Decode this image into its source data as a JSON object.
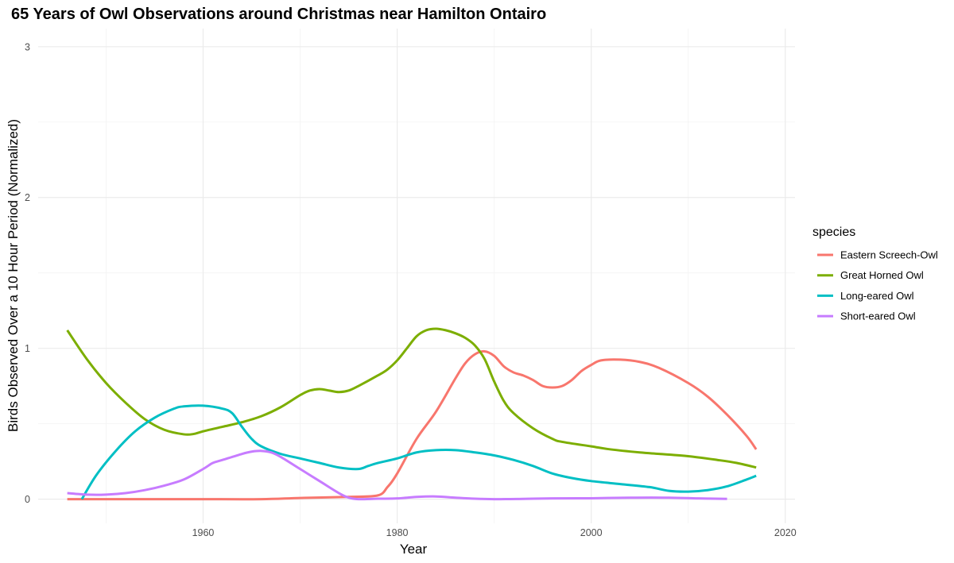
{
  "chart_data": {
    "type": "line",
    "title": "65 Years of Owl Observations around Christmas near Hamilton Ontairo",
    "xlabel": "Year",
    "ylabel": "Birds Observed Over a 10 Hour Period (Normalized)",
    "xlim": [
      1943,
      2021
    ],
    "ylim": [
      -0.16,
      3.12
    ],
    "xticks": [
      1960,
      1980,
      2000,
      2020
    ],
    "yticks": [
      0,
      1,
      2,
      3
    ],
    "grid": true,
    "legend": {
      "title": "species",
      "position": "right"
    },
    "series": [
      {
        "name": "Eastern Screech-Owl",
        "color": "#F8766D",
        "points": [
          [
            1946,
            0.0
          ],
          [
            1950,
            0.0
          ],
          [
            1955,
            0.0
          ],
          [
            1960,
            0.0
          ],
          [
            1966,
            0.0
          ],
          [
            1970,
            0.008
          ],
          [
            1975,
            0.015
          ],
          [
            1978,
            0.025
          ],
          [
            1979,
            0.08
          ],
          [
            1980,
            0.17
          ],
          [
            1982,
            0.4
          ],
          [
            1984,
            0.58
          ],
          [
            1986,
            0.8
          ],
          [
            1987,
            0.9
          ],
          [
            1988,
            0.96
          ],
          [
            1989,
            0.98
          ],
          [
            1990,
            0.95
          ],
          [
            1991,
            0.88
          ],
          [
            1992,
            0.84
          ],
          [
            1993,
            0.82
          ],
          [
            1994,
            0.79
          ],
          [
            1995,
            0.75
          ],
          [
            1996,
            0.74
          ],
          [
            1997,
            0.75
          ],
          [
            1998,
            0.79
          ],
          [
            1999,
            0.85
          ],
          [
            2000,
            0.89
          ],
          [
            2001,
            0.92
          ],
          [
            2003,
            0.925
          ],
          [
            2005,
            0.91
          ],
          [
            2007,
            0.87
          ],
          [
            2010,
            0.77
          ],
          [
            2012,
            0.68
          ],
          [
            2014,
            0.56
          ],
          [
            2016,
            0.42
          ],
          [
            2017,
            0.33
          ]
        ]
      },
      {
        "name": "Great Horned Owl",
        "color": "#7CAE00",
        "points": [
          [
            1946,
            1.12
          ],
          [
            1948,
            0.93
          ],
          [
            1950,
            0.77
          ],
          [
            1952,
            0.64
          ],
          [
            1954,
            0.53
          ],
          [
            1956,
            0.46
          ],
          [
            1958,
            0.43
          ],
          [
            1959,
            0.432
          ],
          [
            1960,
            0.45
          ],
          [
            1962,
            0.48
          ],
          [
            1964,
            0.51
          ],
          [
            1966,
            0.55
          ],
          [
            1968,
            0.61
          ],
          [
            1970,
            0.69
          ],
          [
            1971,
            0.72
          ],
          [
            1972,
            0.73
          ],
          [
            1973,
            0.72
          ],
          [
            1974,
            0.71
          ],
          [
            1975,
            0.72
          ],
          [
            1976,
            0.75
          ],
          [
            1978,
            0.82
          ],
          [
            1979,
            0.86
          ],
          [
            1980,
            0.92
          ],
          [
            1981,
            1.0
          ],
          [
            1982,
            1.08
          ],
          [
            1983,
            1.12
          ],
          [
            1984,
            1.13
          ],
          [
            1985,
            1.12
          ],
          [
            1986,
            1.1
          ],
          [
            1987,
            1.07
          ],
          [
            1988,
            1.02
          ],
          [
            1989,
            0.93
          ],
          [
            1990,
            0.78
          ],
          [
            1991,
            0.65
          ],
          [
            1992,
            0.57
          ],
          [
            1994,
            0.47
          ],
          [
            1996,
            0.4
          ],
          [
            1997,
            0.38
          ],
          [
            2000,
            0.35
          ],
          [
            2002,
            0.33
          ],
          [
            2005,
            0.31
          ],
          [
            2007,
            0.3
          ],
          [
            2010,
            0.285
          ],
          [
            2013,
            0.26
          ],
          [
            2015,
            0.24
          ],
          [
            2017,
            0.21
          ]
        ]
      },
      {
        "name": "Long-eared Owl",
        "color": "#00BFC4",
        "points": [
          [
            1947.5,
            0.0
          ],
          [
            1949,
            0.16
          ],
          [
            1951,
            0.32
          ],
          [
            1953,
            0.45
          ],
          [
            1955,
            0.54
          ],
          [
            1957,
            0.6
          ],
          [
            1958,
            0.615
          ],
          [
            1960,
            0.62
          ],
          [
            1962,
            0.6
          ],
          [
            1963,
            0.57
          ],
          [
            1964,
            0.48
          ],
          [
            1965,
            0.4
          ],
          [
            1966,
            0.35
          ],
          [
            1968,
            0.3
          ],
          [
            1970,
            0.27
          ],
          [
            1972,
            0.24
          ],
          [
            1974,
            0.21
          ],
          [
            1976,
            0.2
          ],
          [
            1977,
            0.22
          ],
          [
            1978,
            0.24
          ],
          [
            1980,
            0.27
          ],
          [
            1982,
            0.31
          ],
          [
            1984,
            0.325
          ],
          [
            1986,
            0.325
          ],
          [
            1988,
            0.31
          ],
          [
            1990,
            0.29
          ],
          [
            1992,
            0.26
          ],
          [
            1994,
            0.22
          ],
          [
            1996,
            0.17
          ],
          [
            1998,
            0.14
          ],
          [
            2000,
            0.12
          ],
          [
            2003,
            0.1
          ],
          [
            2006,
            0.08
          ],
          [
            2008,
            0.055
          ],
          [
            2010,
            0.05
          ],
          [
            2012,
            0.06
          ],
          [
            2014,
            0.085
          ],
          [
            2016,
            0.13
          ],
          [
            2017,
            0.155
          ]
        ]
      },
      {
        "name": "Short-eared Owl",
        "color": "#C77CFF",
        "points": [
          [
            1946,
            0.04
          ],
          [
            1948,
            0.03
          ],
          [
            1950,
            0.03
          ],
          [
            1952,
            0.04
          ],
          [
            1954,
            0.06
          ],
          [
            1956,
            0.09
          ],
          [
            1958,
            0.13
          ],
          [
            1960,
            0.2
          ],
          [
            1961,
            0.24
          ],
          [
            1962,
            0.26
          ],
          [
            1964,
            0.3
          ],
          [
            1965,
            0.315
          ],
          [
            1966,
            0.32
          ],
          [
            1967,
            0.31
          ],
          [
            1968,
            0.28
          ],
          [
            1970,
            0.2
          ],
          [
            1972,
            0.12
          ],
          [
            1974,
            0.04
          ],
          [
            1975,
            0.01
          ],
          [
            1976,
            0.0
          ],
          [
            1978,
            0.003
          ],
          [
            1980,
            0.005
          ],
          [
            1982,
            0.015
          ],
          [
            1984,
            0.018
          ],
          [
            1986,
            0.01
          ],
          [
            1988,
            0.003
          ],
          [
            1990,
            0.0
          ],
          [
            1993,
            0.002
          ],
          [
            1996,
            0.005
          ],
          [
            2000,
            0.006
          ],
          [
            2004,
            0.01
          ],
          [
            2008,
            0.01
          ],
          [
            2011,
            0.005
          ],
          [
            2014,
            0.002
          ]
        ]
      }
    ]
  }
}
